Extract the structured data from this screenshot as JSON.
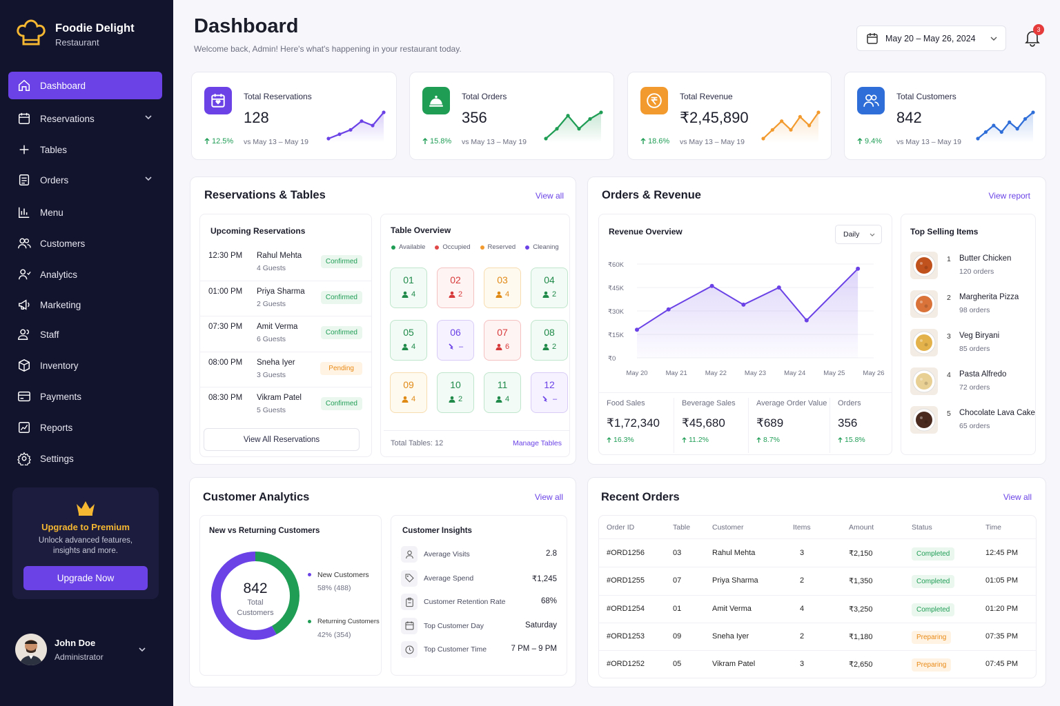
{
  "brand": {
    "name": "Foodie Delight",
    "sub": "Restaurant"
  },
  "nav": [
    {
      "label": "Dashboard",
      "icon": "home-icon",
      "active": true
    },
    {
      "label": "Reservations",
      "icon": "calendar-icon",
      "chevron": true
    },
    {
      "label": "Tables",
      "icon": "plus-icon"
    },
    {
      "label": "Orders",
      "icon": "receipt-icon",
      "chevron": true
    },
    {
      "label": "Menu",
      "icon": "bar-chart-icon"
    },
    {
      "label": "Customers",
      "icon": "users-icon"
    },
    {
      "label": "Analytics",
      "icon": "user-chart-icon"
    },
    {
      "label": "Marketing",
      "icon": "megaphone-icon"
    },
    {
      "label": "Staff",
      "icon": "staff-icon"
    },
    {
      "label": "Inventory",
      "icon": "box-icon"
    },
    {
      "label": "Payments",
      "icon": "card-icon"
    },
    {
      "label": "Reports",
      "icon": "report-icon"
    },
    {
      "label": "Settings",
      "icon": "gear-icon"
    }
  ],
  "premium": {
    "title": "Upgrade to Premium",
    "desc1": "Unlock advanced features,",
    "desc2": "insights and more.",
    "button": "Upgrade Now"
  },
  "user": {
    "name": "John Doe",
    "role": "Administrator"
  },
  "header": {
    "title": "Dashboard",
    "subtitle": "Welcome back, Admin! Here's what's happening in your restaurant today.",
    "date_range": "May 20 – May 26, 2024",
    "notifications": "3"
  },
  "stats": [
    {
      "label": "Total Reservations",
      "value": "128",
      "change": "12.5%",
      "compare": "vs May 13 – May 19",
      "color": "#6a42e6",
      "icon": "calendar-heart-icon",
      "spark": [
        2,
        3,
        4,
        6,
        5,
        8
      ]
    },
    {
      "label": "Total Orders",
      "value": "356",
      "change": "15.8%",
      "compare": "vs May 13 – May 19",
      "color": "#1f9d55",
      "icon": "cloche-icon",
      "spark": [
        1,
        4,
        8,
        4,
        7,
        9
      ]
    },
    {
      "label": "Total Revenue",
      "value": "₹2,45,890",
      "change": "18.6%",
      "compare": "vs May 13 – May 19",
      "color": "#f29a2e",
      "icon": "rupee-icon",
      "spark": [
        2,
        4,
        6,
        4,
        7,
        5,
        8
      ]
    },
    {
      "label": "Total Customers",
      "value": "842",
      "change": "9.4%",
      "compare": "vs May 13 – May 19",
      "color": "#2f6ed8",
      "icon": "users-icon",
      "spark": [
        2,
        4,
        6,
        4,
        7,
        5,
        8,
        10
      ]
    }
  ],
  "reservations_section": {
    "title": "Reservations & Tables",
    "view_all": "View all"
  },
  "upcoming": {
    "title": "Upcoming Reservations",
    "button": "View All Reservations",
    "items": [
      {
        "time": "12:30 PM",
        "name": "Rahul Mehta",
        "guests": "4 Guests",
        "status": "Confirmed"
      },
      {
        "time": "01:00 PM",
        "name": "Priya Sharma",
        "guests": "2 Guests",
        "status": "Confirmed"
      },
      {
        "time": "07:30 PM",
        "name": "Amit Verma",
        "guests": "6 Guests",
        "status": "Confirmed"
      },
      {
        "time": "08:00 PM",
        "name": "Sneha Iyer",
        "guests": "3 Guests",
        "status": "Pending"
      },
      {
        "time": "08:30 PM",
        "name": "Vikram Patel",
        "guests": "5 Guests",
        "status": "Confirmed"
      }
    ]
  },
  "table_overview": {
    "title": "Table Overview",
    "legend": [
      {
        "label": "Available",
        "color": "#1f9d55"
      },
      {
        "label": "Occupied",
        "color": "#e04848"
      },
      {
        "label": "Reserved",
        "color": "#f29a2e"
      },
      {
        "label": "Cleaning",
        "color": "#6a42e6"
      }
    ],
    "tables": [
      {
        "num": "01",
        "guests": "4",
        "state": "av"
      },
      {
        "num": "02",
        "guests": "2",
        "state": "oc"
      },
      {
        "num": "03",
        "guests": "4",
        "state": "re"
      },
      {
        "num": "04",
        "guests": "2",
        "state": "av"
      },
      {
        "num": "05",
        "guests": "4",
        "state": "av"
      },
      {
        "num": "06",
        "guests": "–",
        "state": "cl"
      },
      {
        "num": "07",
        "guests": "6",
        "state": "oc"
      },
      {
        "num": "08",
        "guests": "2",
        "state": "av"
      },
      {
        "num": "09",
        "guests": "4",
        "state": "re"
      },
      {
        "num": "10",
        "guests": "2",
        "state": "av"
      },
      {
        "num": "11",
        "guests": "4",
        "state": "av"
      },
      {
        "num": "12",
        "guests": "–",
        "state": "cl"
      }
    ],
    "total": "Total Tables: 12",
    "manage": "Manage Tables"
  },
  "orders_section": {
    "title": "Orders & Revenue",
    "view_report": "View report"
  },
  "revenue": {
    "title": "Revenue Overview",
    "period": "Daily"
  },
  "chart_data": {
    "type": "area",
    "title": "Revenue Overview",
    "categories": [
      "May 20",
      "May 21",
      "May 22",
      "May 23",
      "May 24",
      "May 25",
      "May 26"
    ],
    "yticks": [
      "₹60K",
      "₹45K",
      "₹30K",
      "₹15K",
      "₹0"
    ],
    "ylim": [
      0,
      60000
    ],
    "series": [
      {
        "x": [
          0,
          0.8,
          1.9,
          2.7,
          3.6,
          4.3,
          5.6
        ],
        "values": [
          18000,
          31000,
          46000,
          34000,
          45000,
          24000,
          57000
        ]
      }
    ]
  },
  "sales": [
    {
      "label": "Food Sales",
      "value": "₹1,72,340",
      "change": "16.3%"
    },
    {
      "label": "Beverage Sales",
      "value": "₹45,680",
      "change": "11.2%"
    },
    {
      "label": "Average Order Value",
      "value": "₹689",
      "change": "8.7%"
    },
    {
      "label": "Orders",
      "value": "356",
      "change": "15.8%"
    }
  ],
  "top_selling": {
    "title": "Top Selling Items",
    "items": [
      {
        "rank": "1",
        "name": "Butter Chicken",
        "orders": "120 orders",
        "color": "#c0521e"
      },
      {
        "rank": "2",
        "name": "Margherita Pizza",
        "orders": "98 orders",
        "color": "#d9733a"
      },
      {
        "rank": "3",
        "name": "Veg Biryani",
        "orders": "85 orders",
        "color": "#e3b24a"
      },
      {
        "rank": "4",
        "name": "Pasta Alfredo",
        "orders": "72 orders",
        "color": "#e8cf93"
      },
      {
        "rank": "5",
        "name": "Chocolate Lava Cake",
        "orders": "65 orders",
        "color": "#4a2a1e"
      }
    ]
  },
  "customer_analytics": {
    "title": "Customer Analytics",
    "view_all": "View all",
    "chart_title": "New vs Returning Customers",
    "total": "842",
    "total_label1": "Total",
    "total_label2": "Customers",
    "segments": [
      {
        "label": "New Customers",
        "detail": "58% (488)",
        "pct": 58,
        "color": "#6a42e6"
      },
      {
        "label": "Returning Customers",
        "detail": "42% (354)",
        "pct": 42,
        "color": "#1f9d55"
      }
    ]
  },
  "insights": {
    "title": "Customer Insights",
    "items": [
      {
        "label": "Average Visits",
        "value": "2.8",
        "icon": "user-icon"
      },
      {
        "label": "Average Spend",
        "value": "₹1,245",
        "icon": "tag-icon"
      },
      {
        "label": "Customer Retention Rate",
        "value": "68%",
        "icon": "clipboard-icon"
      },
      {
        "label": "Top Customer Day",
        "value": "Saturday",
        "icon": "calendar-icon"
      },
      {
        "label": "Top Customer Time",
        "value": "7 PM – 9 PM",
        "icon": "clock-icon"
      }
    ]
  },
  "recent_orders": {
    "title": "Recent Orders",
    "view_all": "View all",
    "headers": [
      "Order ID",
      "Table",
      "Customer",
      "Items",
      "Amount",
      "Status",
      "Time"
    ],
    "rows": [
      {
        "id": "#ORD1256",
        "table": "03",
        "customer": "Rahul Mehta",
        "items": "3",
        "amount": "₹2,150",
        "status": "Completed",
        "time": "12:45 PM"
      },
      {
        "id": "#ORD1255",
        "table": "07",
        "customer": "Priya Sharma",
        "items": "2",
        "amount": "₹1,350",
        "status": "Completed",
        "time": "01:05 PM"
      },
      {
        "id": "#ORD1254",
        "table": "01",
        "customer": "Amit Verma",
        "items": "4",
        "amount": "₹3,250",
        "status": "Completed",
        "time": "01:20 PM"
      },
      {
        "id": "#ORD1253",
        "table": "09",
        "customer": "Sneha Iyer",
        "items": "2",
        "amount": "₹1,180",
        "status": "Preparing",
        "time": "07:35 PM"
      },
      {
        "id": "#ORD1252",
        "table": "05",
        "customer": "Vikram Patel",
        "items": "3",
        "amount": "₹2,650",
        "status": "Preparing",
        "time": "07:45 PM"
      }
    ]
  }
}
